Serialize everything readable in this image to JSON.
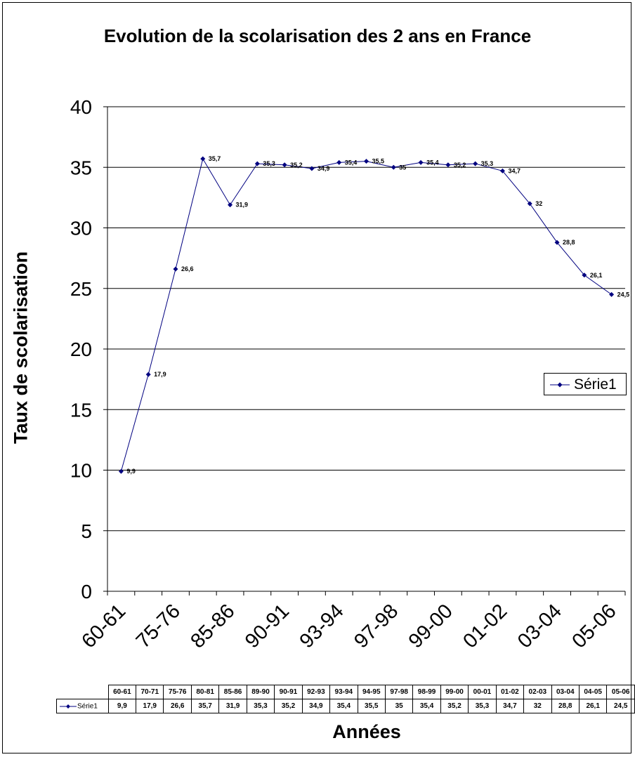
{
  "chart_data": {
    "type": "line",
    "title": "Evolution de la scolarisation des 2 ans en France",
    "xlabel": "Années",
    "ylabel": "Taux de scolarisation",
    "ylim": [
      0,
      40
    ],
    "yticks": [
      "0",
      "5",
      "10",
      "15",
      "20",
      "25",
      "30",
      "35",
      "40"
    ],
    "categories": [
      "60-61",
      "70-71",
      "75-76",
      "80-81",
      "85-86",
      "89-90",
      "90-91",
      "92-93",
      "93-94",
      "94-95",
      "97-98",
      "98-99",
      "99-00",
      "00-01",
      "01-02",
      "02-03",
      "03-04",
      "04-05",
      "05-06"
    ],
    "x_tick_labels": [
      "60-61",
      "75-76",
      "85-86",
      "90-91",
      "93-94",
      "97-98",
      "99-00",
      "01-02",
      "03-04",
      "05-06"
    ],
    "series": [
      {
        "name": "Série1",
        "color": "#000080",
        "values": [
          9.9,
          17.9,
          26.6,
          35.7,
          31.9,
          35.3,
          35.2,
          34.9,
          35.4,
          35.5,
          35,
          35.4,
          35.2,
          35.3,
          34.7,
          32,
          28.8,
          26.1,
          24.5
        ],
        "labels": [
          "9,9",
          "17,9",
          "26,6",
          "35,7",
          "31,9",
          "35,3",
          "35,2",
          "34,9",
          "35,4",
          "35,5",
          "35",
          "35,4",
          "35,2",
          "35,3",
          "34,7",
          "32",
          "28,8",
          "26,1",
          "24,5"
        ]
      }
    ],
    "grid": true,
    "legend_position": "right",
    "data_table": true
  }
}
